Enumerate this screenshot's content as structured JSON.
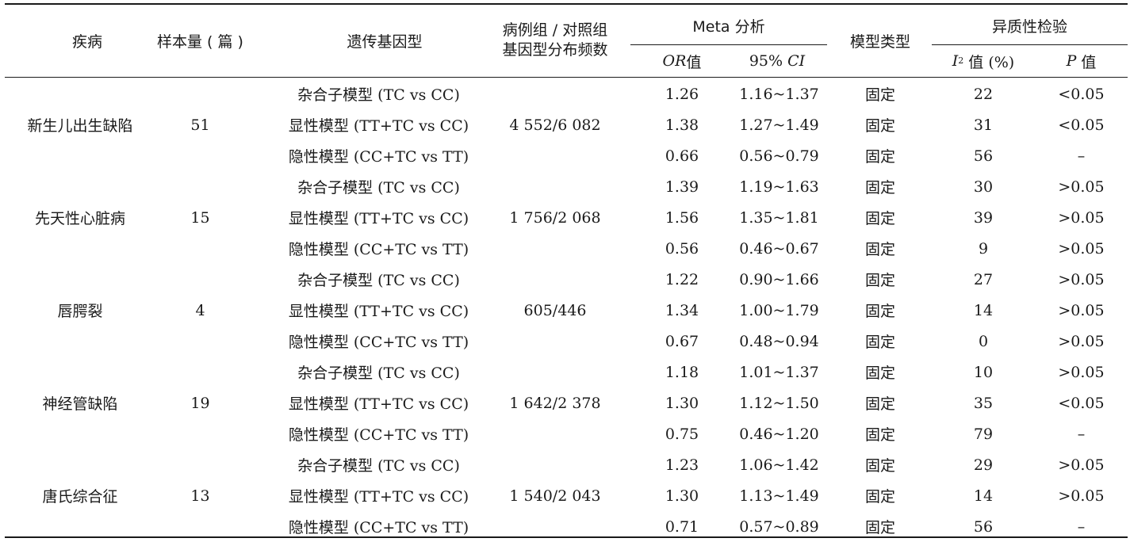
{
  "table": {
    "headers": {
      "disease": "疾病",
      "sample": "样本量 ( 篇 )",
      "genotype_model": "遗传基因型",
      "distribution_line1": "病例组 / 对照组",
      "distribution_line2": "基因型分布频数",
      "meta": "Meta 分析",
      "or_italic": "OR",
      "or_suffix": " 值",
      "ci_prefix": "95% ",
      "ci_italic": "CI",
      "model_type": "模型类型",
      "heterogeneity": "异质性检验",
      "i2_italic": "I",
      "i2_sup": "2",
      "i2_suffix": " 值 (%)",
      "p_italic": "P",
      "p_suffix": " 值"
    },
    "groups": [
      {
        "disease": "新生儿出生缺陷",
        "sample": "51",
        "distribution": "4 552/6 082",
        "rows": [
          {
            "model": "杂合子模型 (TC vs CC)",
            "or": "1.26",
            "ci": "1.16~1.37",
            "type": "固定",
            "i2": "22",
            "p": "<0.05"
          },
          {
            "model": "显性模型 (TT+TC vs CC)",
            "or": "1.38",
            "ci": "1.27~1.49",
            "type": "固定",
            "i2": "31",
            "p": "<0.05"
          },
          {
            "model": "隐性模型 (CC+TC vs TT)",
            "or": "0.66",
            "ci": "0.56~0.79",
            "type": "固定",
            "i2": "56",
            "p": "–"
          }
        ]
      },
      {
        "disease": "先天性心脏病",
        "sample": "15",
        "distribution": "1 756/2 068",
        "rows": [
          {
            "model": "杂合子模型 (TC vs CC)",
            "or": "1.39",
            "ci": "1.19~1.63",
            "type": "固定",
            "i2": "30",
            "p": ">0.05"
          },
          {
            "model": "显性模型 (TT+TC vs CC)",
            "or": "1.56",
            "ci": "1.35~1.81",
            "type": "固定",
            "i2": "39",
            "p": ">0.05"
          },
          {
            "model": "隐性模型 (CC+TC vs TT)",
            "or": "0.56",
            "ci": "0.46~0.67",
            "type": "固定",
            "i2": "9",
            "p": ">0.05"
          }
        ]
      },
      {
        "disease": "唇腭裂",
        "sample": "4",
        "distribution": "605/446",
        "rows": [
          {
            "model": "杂合子模型 (TC vs CC)",
            "or": "1.22",
            "ci": "0.90~1.66",
            "type": "固定",
            "i2": "27",
            "p": ">0.05"
          },
          {
            "model": "显性模型 (TT+TC vs CC)",
            "or": "1.34",
            "ci": "1.00~1.79",
            "type": "固定",
            "i2": "14",
            "p": ">0.05"
          },
          {
            "model": "隐性模型 (CC+TC vs TT)",
            "or": "0.67",
            "ci": "0.48~0.94",
            "type": "固定",
            "i2": "0",
            "p": ">0.05"
          }
        ]
      },
      {
        "disease": "神经管缺陷",
        "sample": "19",
        "distribution": "1 642/2 378",
        "rows": [
          {
            "model": "杂合子模型 (TC vs CC)",
            "or": "1.18",
            "ci": "1.01~1.37",
            "type": "固定",
            "i2": "10",
            "p": ">0.05"
          },
          {
            "model": "显性模型 (TT+TC vs CC)",
            "or": "1.30",
            "ci": "1.12~1.50",
            "type": "固定",
            "i2": "35",
            "p": "<0.05"
          },
          {
            "model": "隐性模型 (CC+TC vs TT)",
            "or": "0.75",
            "ci": "0.46~1.20",
            "type": "固定",
            "i2": "79",
            "p": "–"
          }
        ]
      },
      {
        "disease": "唐氏综合征",
        "sample": "13",
        "distribution": "1 540/2 043",
        "rows": [
          {
            "model": "杂合子模型 (TC vs CC)",
            "or": "1.23",
            "ci": "1.06~1.42",
            "type": "固定",
            "i2": "29",
            "p": ">0.05"
          },
          {
            "model": "显性模型 (TT+TC vs CC)",
            "or": "1.30",
            "ci": "1.13~1.49",
            "type": "固定",
            "i2": "14",
            "p": ">0.05"
          },
          {
            "model": "隐性模型 (CC+TC vs TT)",
            "or": "0.71",
            "ci": "0.57~0.89",
            "type": "固定",
            "i2": "56",
            "p": "–"
          }
        ]
      }
    ]
  }
}
